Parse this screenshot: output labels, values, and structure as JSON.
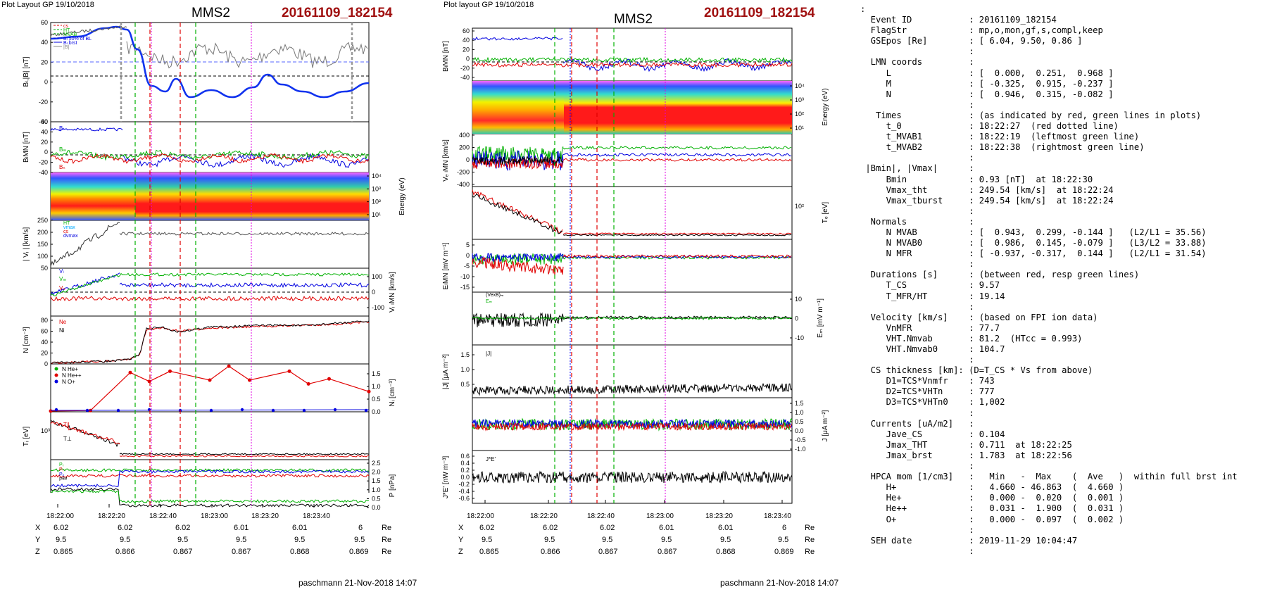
{
  "left": {
    "header": "Plot Layout GP 19/10/2018",
    "spacecraft": "MMS2",
    "event": "20161109_182154",
    "footer": "paschmann 21-Nov-2018 14:07",
    "time_ticks": [
      "18:22:00",
      "18:22:20",
      "18:22:40",
      "18:23:00",
      "18:23:20",
      "18:23:40"
    ],
    "coord_rows": [
      {
        "label": "X",
        "values": [
          "6.02",
          "6.02",
          "6.02",
          "6.01",
          "6.01",
          "6"
        ],
        "unit": "Re"
      },
      {
        "label": "Y",
        "values": [
          "9.5",
          "9.5",
          "9.5",
          "9.5",
          "9.5",
          "9.5"
        ],
        "unit": "Re"
      },
      {
        "label": "Z",
        "values": [
          "0.865",
          "0.866",
          "0.867",
          "0.867",
          "0.868",
          "0.869"
        ],
        "unit": "Re"
      }
    ]
  },
  "right": {
    "header": "Plot layout GP 19/10/2018",
    "spacecraft": "MMS2",
    "event": "20161109_182154",
    "footer": "paschmann 21-Nov-2018 14:07",
    "time_ticks": [
      "18:22:00",
      "18:22:20",
      "18:22:40",
      "18:23:00",
      "18:23:20",
      "18:23:40"
    ],
    "coord_rows": [
      {
        "label": "X",
        "values": [
          "6.02",
          "6.02",
          "6.02",
          "6.01",
          "6.01",
          "6"
        ],
        "unit": "Re"
      },
      {
        "label": "Y",
        "values": [
          "9.5",
          "9.5",
          "9.5",
          "9.5",
          "9.5",
          "9.5"
        ],
        "unit": "Re"
      },
      {
        "label": "Z",
        "values": [
          "0.865",
          "0.866",
          "0.867",
          "0.867",
          "0.868",
          "0.869"
        ],
        "unit": "Re"
      }
    ]
  },
  "info_lines": [
    ":",
    "  Event ID           : 20161109_182154",
    "  FlagStr            : mp,o,mon,gf,s,compl,keep",
    "  GSEpos [Re]        : [ 6.04, 9.50, 0.86 ]",
    "                     :",
    "  LMN coords         :",
    "     L               : [  0.000,  0.251,  0.968 ]",
    "     M               : [ -0.325,  0.915, -0.237 ]",
    "     N               : [  0.946,  0.315, -0.082 ]",
    "                     :",
    "   Times             : (as indicated by red, green lines in plots)",
    "     t_0             : 18:22:27  (red dotted line)",
    "     t_MVAB1         : 18:22:19  (leftmost green line)",
    "     t_MVAB2         : 18:22:38  (rightmost green line)",
    "                     :",
    " |Bmin|, |Vmax|      :",
    "     Bmin            : 0.93 [nT]  at 18:22:30",
    "     Vmax_tht        : 249.54 [km/s]  at 18:22:24",
    "     Vmax_tburst     : 249.54 [km/s]  at 18:22:24",
    "                     :",
    "  Normals            :",
    "     N MVAB          : [  0.943,  0.299, -0.144 ]   (L2/L1 = 35.56)",
    "     N MVAB0         : [  0.986,  0.145, -0.079 ]   (L3/L2 = 33.88)",
    "     N MFR           : [ -0.937, -0.317,  0.144 ]   (L2/L1 = 31.54)",
    "                     :",
    "  Durations [s]      : (between red, resp green lines)",
    "     T_CS            : 9.57",
    "     T_MFR/HT        : 19.14",
    "                     :",
    "  Velocity [km/s]    : (based on FPI ion data)",
    "     VnMFR           : 77.7",
    "     VHT.Nmvab       : 81.2  (HTcc = 0.993)",
    "     VHT.Nmvab0      : 104.7",
    "                     :",
    "  CS thickness [km]: (D=T_CS * Vs from above)",
    "     D1=TCS*Vnmfr    : 743",
    "     D2=TCS*VHTn     : 777",
    "     D3=TCS*VHTn0    : 1,002",
    "                     :",
    "  Currents [uA/m2]   :",
    "     Jave_CS         : 0.104",
    "     Jmax_THT        : 0.711  at 18:22:25",
    "     Jmax_brst       : 1.783  at 18:22:56",
    "                     :",
    "  HPCA mom [1/cm3]   :   Min   -  Max    (  Ave   )  within full brst int",
    "     H+              :   4.660 - 46.863  (  4.660 )",
    "     He+             :   0.000 -  0.020  (  0.001 )",
    "     He++            :   0.031 -  1.900  (  0.031 )",
    "     O+              :   0.000 -  0.097  (  0.002 )",
    "                     :",
    "  SEH date           : 2019-11-29 10:04:47",
    "                     :"
  ],
  "colors": {
    "event": "#a01010",
    "red": "#e00000",
    "green": "#00b000",
    "blue": "#0000e0",
    "magenta": "#e000e0",
    "grey": "#888888"
  },
  "chart_data": [
    {
      "type": "line",
      "panel": "left-BL",
      "ylabel": "Bₗ,|B| [nT]",
      "ylim": [
        -40,
        60
      ],
      "yticks": [
        "60",
        "40",
        "20",
        "0",
        "-20",
        "-40"
      ],
      "series": [
        {
          "name": "Bₗ brst",
          "color": "blue",
          "t": [
            0,
            5,
            10,
            15,
            20,
            25,
            30,
            35,
            40,
            45,
            50,
            55,
            60,
            65,
            70,
            75,
            80,
            85,
            90,
            95,
            100
          ],
          "values": [
            42,
            44,
            48,
            53,
            55,
            50,
            10,
            -18,
            -5,
            -20,
            -12,
            -28,
            -22,
            -16,
            -25,
            -5,
            5,
            -10,
            -20,
            -15,
            -8
          ]
        },
        {
          "name": "|B|",
          "color": "grey",
          "t": [
            0,
            5,
            10,
            15,
            20,
            25,
            30,
            35,
            40,
            45,
            50,
            55,
            60,
            65,
            70,
            75,
            80,
            85,
            90,
            95,
            100
          ],
          "values": [
            42,
            44,
            48,
            53,
            55,
            52,
            12,
            20,
            25,
            18,
            22,
            28,
            15,
            24,
            20,
            30,
            18,
            25,
            35,
            22,
            18
          ]
        }
      ],
      "legend": [
        "cs",
        "HT",
        "MVAB",
        "Bₗ 50% of BL",
        "Bₗ brst",
        "|B|"
      ]
    },
    {
      "type": "line",
      "panel": "left-BLMN",
      "ylabel": "BₗMN [nT]",
      "ylim": [
        -40,
        60
      ],
      "yticks": [
        "60",
        "40",
        "20",
        "0",
        "-20",
        "-40"
      ],
      "series": [
        {
          "name": "Bₗ",
          "color": "blue"
        },
        {
          "name": "Bₘ",
          "color": "green"
        },
        {
          "name": "Bₙ",
          "color": "red"
        }
      ]
    },
    {
      "type": "heatmap",
      "panel": "left-spectrogram",
      "ylabel": "Energy (eV)",
      "yticks": [
        "10⁴",
        "10³",
        "10²",
        "10¹"
      ]
    },
    {
      "type": "line",
      "panel": "left-Vi",
      "ylabel": "| Vᵢ | [km/s]",
      "ylim": [
        50,
        250
      ],
      "yticks": [
        "250",
        "200",
        "150",
        "100",
        "50"
      ],
      "series": [
        {
          "name": "|Vᵢ|",
          "color": "black",
          "t": [
            0,
            5,
            10,
            15,
            20,
            25,
            28,
            35,
            50,
            70,
            100
          ],
          "values": [
            50,
            60,
            70,
            90,
            110,
            140,
            200,
            190,
            195,
            190,
            200
          ]
        }
      ],
      "legend": [
        "HT",
        "vmax",
        "cs",
        "dvmax"
      ]
    },
    {
      "type": "line",
      "panel": "left-ViLMN",
      "ylabel": "Vᵢ ₗMN [km/s]",
      "ylim": [
        -100,
        100
      ],
      "yticks": [
        "100",
        "0",
        "-100"
      ],
      "series": [
        {
          "name": "Vₗ",
          "color": "blue"
        },
        {
          "name": "Vₘ",
          "color": "green"
        },
        {
          "name": "Vₙ",
          "color": "red"
        }
      ]
    },
    {
      "type": "line",
      "panel": "left-N",
      "ylabel": "N [cm⁻³]",
      "ylim": [
        0,
        90
      ],
      "yticks": [
        "80",
        "60",
        "40",
        "20",
        "0"
      ],
      "series": [
        {
          "name": "Ne",
          "color": "red",
          "t": [
            0,
            10,
            20,
            25,
            28,
            30,
            35,
            40,
            50,
            60,
            70,
            80,
            90,
            100
          ],
          "values": [
            2,
            4,
            6,
            10,
            20,
            70,
            75,
            68,
            74,
            76,
            78,
            80,
            82,
            86
          ]
        },
        {
          "name": "Ni",
          "color": "black",
          "t": [
            0,
            10,
            20,
            25,
            28,
            30,
            35,
            40,
            50,
            60,
            70,
            80,
            90,
            100
          ],
          "values": [
            2,
            4,
            6,
            10,
            20,
            72,
            76,
            66,
            76,
            78,
            80,
            79,
            84,
            88
          ]
        }
      ]
    },
    {
      "type": "line",
      "panel": "left-Ni-HPCA",
      "ylabel": "Nᵢ [cm⁻³]",
      "ylim": [
        0,
        1.5
      ],
      "yticks": [
        "1.5",
        "1.0",
        "0.5",
        "0.0"
      ],
      "series": [
        {
          "name": "N He+",
          "color": "green",
          "t": [
            0,
            100
          ],
          "values": [
            0,
            0
          ]
        },
        {
          "name": "N He++",
          "color": "red",
          "t": [
            0,
            12.5,
            25,
            31,
            37.5,
            50,
            56,
            62.5,
            75,
            81,
            87.5,
            100
          ],
          "values": [
            0.03,
            0.05,
            1.55,
            1.2,
            1.6,
            1.25,
            1.8,
            1.25,
            1.6,
            1.1,
            1.3,
            0.8
          ]
        },
        {
          "name": "N O+",
          "color": "blue",
          "t": [
            0,
            100
          ],
          "values": [
            0.02,
            0.05
          ]
        }
      ]
    },
    {
      "type": "line",
      "panel": "left-Ti",
      "ylabel": "Tᵢ [eV]",
      "yticks": [
        "10³"
      ],
      "series": [
        {
          "name": "T⊥",
          "color": "black"
        },
        {
          "name": "T∥",
          "color": "red"
        }
      ]
    },
    {
      "type": "line",
      "panel": "left-P",
      "ylabel": "P [nPa]",
      "ylim": [
        0,
        2.5
      ],
      "yticks": [
        "2.5",
        "2.0",
        "1.5",
        "1.0",
        "0.5",
        "0.0"
      ],
      "series": [
        {
          "name": "Pₜ",
          "color": "green"
        },
        {
          "name": "Pᵢ",
          "color": "red"
        },
        {
          "name": "Pₑ",
          "color": "blue"
        },
        {
          "name": "Pᴮᴹ",
          "color": "black"
        }
      ]
    },
    {
      "type": "line",
      "panel": "right-BLMN",
      "ylabel": "BₗMN [nT]",
      "yticks": [
        "60",
        "40",
        "20",
        "0",
        "-20",
        "-40"
      ]
    },
    {
      "type": "heatmap",
      "panel": "right-spectrogram",
      "ylabel": "Energy (eV)",
      "yticks": [
        "10⁴",
        "10³",
        "10²",
        "10¹"
      ]
    },
    {
      "type": "line",
      "panel": "right-Ve",
      "ylabel": "Vₑ ₗMN [km/s]",
      "yticks": [
        "400",
        "200",
        "0",
        "-200",
        "-400"
      ]
    },
    {
      "type": "line",
      "panel": "right-Te",
      "ylabel": "Tₑ [eV]",
      "yticks": [
        "10²"
      ]
    },
    {
      "type": "line",
      "panel": "right-E",
      "ylabel": "EₗMN [mV m⁻¹]",
      "yticks": [
        "5",
        "0",
        "-5",
        "-10",
        "-15"
      ]
    },
    {
      "type": "line",
      "panel": "right-EM",
      "ylabel": "Eₘ [mV m⁻¹]",
      "yticks": [
        "10",
        "0",
        "-10"
      ],
      "legend": [
        "(VexB)ₘ",
        "Eₘ"
      ]
    },
    {
      "type": "line",
      "panel": "right-J",
      "ylabel": "|J| [μA m⁻²]",
      "yticks": [
        "1.5",
        "1.0",
        "0.5"
      ],
      "legend": [
        "|J|"
      ]
    },
    {
      "type": "line",
      "panel": "right-JLMN",
      "ylabel": "J [μA m⁻²]",
      "yticks": [
        "1.5",
        "1.0",
        "0.5",
        "0.0",
        "-0.5",
        "-1.0"
      ]
    },
    {
      "type": "line",
      "panel": "right-JE",
      "ylabel": "J*E' [nW m⁻³]",
      "yticks": [
        "0.6",
        "0.4",
        "0.2",
        "0.0",
        "-0.2",
        "-0.4",
        "-0.6"
      ],
      "legend": [
        "J*E'"
      ]
    }
  ]
}
